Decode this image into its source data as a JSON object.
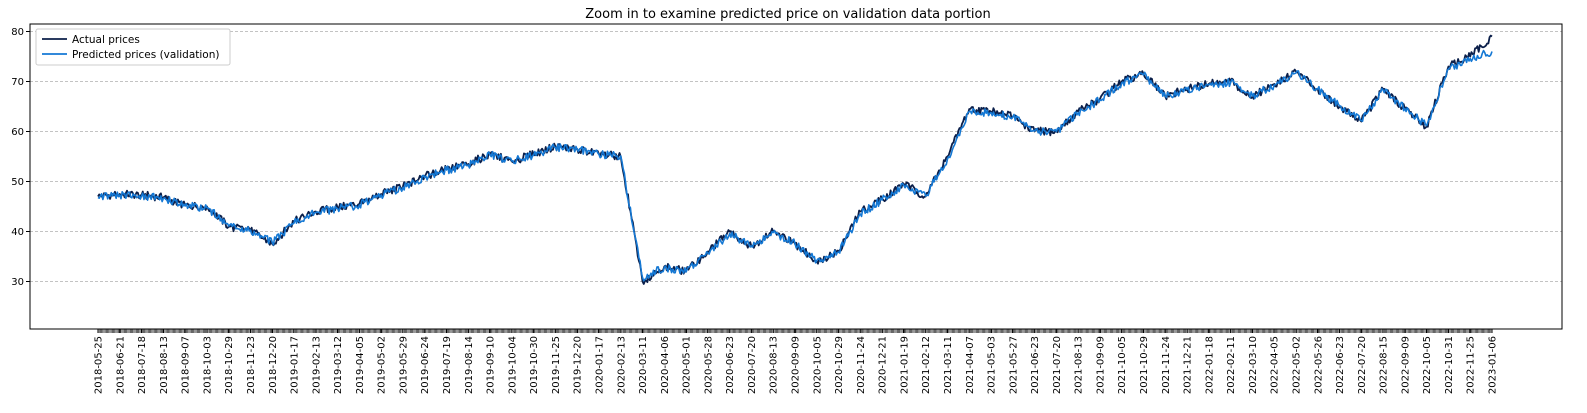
{
  "chart_data": {
    "type": "line",
    "title": "Zoom in to examine predicted price on validation data portion",
    "xlabel": "",
    "ylabel": "",
    "ylim": [
      20.5,
      81.5
    ],
    "yticks": [
      30,
      40,
      50,
      60,
      70,
      80
    ],
    "grid": "horizontal-dashed",
    "legend_position": "top-left",
    "x_tick_labels": [
      "2018-05-25",
      "2018-06-21",
      "2018-07-18",
      "2018-08-13",
      "2018-09-07",
      "2018-10-03",
      "2018-10-29",
      "2018-11-23",
      "2018-12-20",
      "2019-01-17",
      "2019-02-13",
      "2019-03-12",
      "2019-04-05",
      "2019-05-02",
      "2019-05-29",
      "2019-06-24",
      "2019-07-19",
      "2019-08-14",
      "2019-09-10",
      "2019-10-04",
      "2019-10-30",
      "2019-11-25",
      "2019-12-20",
      "2020-01-17",
      "2020-02-13",
      "2020-03-11",
      "2020-04-06",
      "2020-05-01",
      "2020-05-28",
      "2020-06-23",
      "2020-07-20",
      "2020-08-13",
      "2020-09-09",
      "2020-10-05",
      "2020-10-29",
      "2020-11-24",
      "2020-12-21",
      "2021-01-19",
      "2021-02-12",
      "2021-03-11",
      "2021-04-07",
      "2021-05-03",
      "2021-05-27",
      "2021-06-23",
      "2021-07-20",
      "2021-08-13",
      "2021-09-09",
      "2021-10-05",
      "2021-10-29",
      "2021-11-24",
      "2021-12-21",
      "2022-01-18",
      "2022-02-11",
      "2022-03-10",
      "2022-04-05",
      "2022-05-02",
      "2022-05-26",
      "2022-06-23",
      "2022-07-20",
      "2022-08-15",
      "2022-09-09",
      "2022-10-05",
      "2022-10-31",
      "2022-11-25",
      "2023-01-06"
    ],
    "series": [
      {
        "name": "Actual prices",
        "color": "#0b1f4a",
        "x": [
          "2018-05-25",
          "2018-06-21",
          "2018-07-18",
          "2018-08-13",
          "2018-09-07",
          "2018-10-03",
          "2018-10-29",
          "2018-11-23",
          "2018-12-20",
          "2019-01-17",
          "2019-02-13",
          "2019-03-12",
          "2019-04-05",
          "2019-05-02",
          "2019-05-29",
          "2019-06-24",
          "2019-07-19",
          "2019-08-14",
          "2019-09-10",
          "2019-10-04",
          "2019-10-30",
          "2019-11-25",
          "2019-12-20",
          "2020-01-17",
          "2020-02-13",
          "2020-03-11",
          "2020-04-06",
          "2020-05-01",
          "2020-05-28",
          "2020-06-23",
          "2020-07-20",
          "2020-08-13",
          "2020-09-09",
          "2020-10-05",
          "2020-10-29",
          "2020-11-24",
          "2020-12-21",
          "2021-01-19",
          "2021-02-12",
          "2021-03-11",
          "2021-04-07",
          "2021-05-03",
          "2021-05-27",
          "2021-06-23",
          "2021-07-20",
          "2021-08-13",
          "2021-09-09",
          "2021-10-05",
          "2021-10-29",
          "2021-11-24",
          "2021-12-21",
          "2022-01-18",
          "2022-02-11",
          "2022-03-10",
          "2022-04-05",
          "2022-05-02",
          "2022-05-26",
          "2022-06-23",
          "2022-07-20",
          "2022-08-15",
          "2022-09-09",
          "2022-10-05",
          "2022-10-31",
          "2022-11-25",
          "2023-01-06"
        ],
        "values": [
          47.0,
          47.5,
          47.3,
          46.8,
          45.2,
          45.0,
          41.0,
          40.2,
          37.5,
          42.0,
          44.0,
          44.8,
          45.5,
          47.5,
          49.0,
          51.0,
          52.5,
          53.5,
          55.5,
          54.0,
          55.5,
          57.0,
          56.5,
          55.5,
          55.0,
          30.0,
          33.0,
          32.0,
          36.0,
          40.0,
          37.0,
          40.0,
          37.5,
          34.0,
          36.0,
          44.0,
          46.5,
          49.5,
          47.0,
          55.0,
          64.5,
          64.0,
          63.0,
          60.0,
          60.0,
          64.0,
          66.5,
          70.0,
          71.5,
          67.0,
          68.5,
          69.5,
          70.0,
          67.0,
          69.5,
          72.0,
          68.5,
          65.0,
          62.0,
          68.5,
          64.5,
          61.0,
          73.0,
          75.0,
          79.0
        ]
      },
      {
        "name": "Predicted prices (validation)",
        "color": "#1478d4",
        "x": [
          "2018-05-25",
          "2018-06-21",
          "2018-07-18",
          "2018-08-13",
          "2018-09-07",
          "2018-10-03",
          "2018-10-29",
          "2018-11-23",
          "2018-12-20",
          "2019-01-17",
          "2019-02-13",
          "2019-03-12",
          "2019-04-05",
          "2019-05-02",
          "2019-05-29",
          "2019-06-24",
          "2019-07-19",
          "2019-08-14",
          "2019-09-10",
          "2019-10-04",
          "2019-10-30",
          "2019-11-25",
          "2019-12-20",
          "2020-01-17",
          "2020-02-13",
          "2020-03-11",
          "2020-04-06",
          "2020-05-01",
          "2020-05-28",
          "2020-06-23",
          "2020-07-20",
          "2020-08-13",
          "2020-09-09",
          "2020-10-05",
          "2020-10-29",
          "2020-11-24",
          "2020-12-21",
          "2021-01-19",
          "2021-02-12",
          "2021-03-11",
          "2021-04-07",
          "2021-05-03",
          "2021-05-27",
          "2021-06-23",
          "2021-07-20",
          "2021-08-13",
          "2021-09-09",
          "2021-10-05",
          "2021-10-29",
          "2021-11-24",
          "2021-12-21",
          "2022-01-18",
          "2022-02-11",
          "2022-03-10",
          "2022-04-05",
          "2022-05-02",
          "2022-05-26",
          "2022-06-23",
          "2022-07-20",
          "2022-08-15",
          "2022-09-09",
          "2022-10-05",
          "2022-10-31",
          "2022-11-25",
          "2023-01-06"
        ],
        "values": [
          46.8,
          47.3,
          47.1,
          46.6,
          45.1,
          44.8,
          41.1,
          40.3,
          37.8,
          41.7,
          43.8,
          44.6,
          45.3,
          47.3,
          48.8,
          50.8,
          52.3,
          53.3,
          55.3,
          54.1,
          55.3,
          56.8,
          56.4,
          55.4,
          55.1,
          30.8,
          32.8,
          31.9,
          35.7,
          39.6,
          37.1,
          39.8,
          37.6,
          34.2,
          35.9,
          43.5,
          46.3,
          49.2,
          47.1,
          54.5,
          64.0,
          63.8,
          62.9,
          60.1,
          60.0,
          63.8,
          66.3,
          69.7,
          71.3,
          67.1,
          68.4,
          69.3,
          69.8,
          67.1,
          69.3,
          71.7,
          68.5,
          65.1,
          62.2,
          68.3,
          64.6,
          61.2,
          72.5,
          74.6,
          76.0
        ]
      }
    ]
  }
}
